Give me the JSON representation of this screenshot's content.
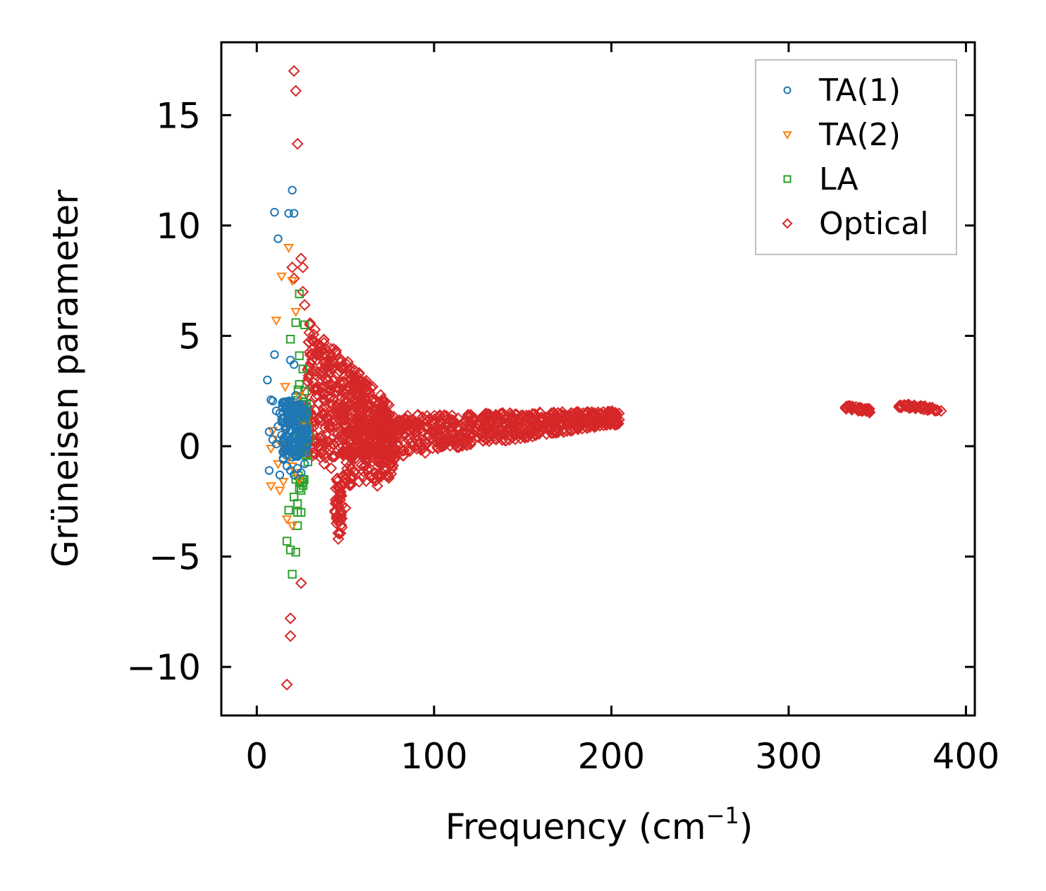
{
  "chart_data": {
    "type": "scatter",
    "title": "",
    "xlabel": "Frequency (cm",
    "xlabel_sup": "−1",
    "xlabel_end": ")",
    "ylabel": "Grüneisen parameter",
    "xlim": [
      -20,
      405
    ],
    "ylim": [
      -12.2,
      18.3
    ],
    "xticks": [
      0,
      100,
      200,
      300,
      400
    ],
    "xtick_labels": [
      "0",
      "100",
      "200",
      "300",
      "400"
    ],
    "yticks": [
      -10,
      -5,
      0,
      5,
      10,
      15
    ],
    "ytick_labels": [
      "−10",
      "−5",
      "0",
      "5",
      "10",
      "15"
    ],
    "legend_position": "top-right",
    "series": [
      {
        "name": "TA(1)",
        "marker": "circle",
        "color": "#1f77b4",
        "points": [
          [
            20,
            11.6
          ],
          [
            10,
            10.6
          ],
          [
            18,
            10.55
          ],
          [
            21,
            10.55
          ],
          [
            12,
            9.4
          ],
          [
            10,
            4.15
          ],
          [
            19,
            3.9
          ],
          [
            21,
            3.7
          ],
          [
            6,
            3.0
          ],
          [
            8,
            2.1
          ],
          [
            9,
            2.05
          ],
          [
            11,
            1.6
          ],
          [
            13,
            1.5
          ],
          [
            15,
            1.3
          ],
          [
            17,
            1.2
          ],
          [
            19,
            1.05
          ],
          [
            21,
            0.95
          ],
          [
            23,
            0.85
          ],
          [
            25,
            0.75
          ],
          [
            27,
            0.7
          ],
          [
            7,
            0.65
          ],
          [
            9,
            0.3
          ],
          [
            11,
            0.1
          ],
          [
            14,
            0.5
          ],
          [
            16,
            0.8
          ],
          [
            18,
            0.4
          ],
          [
            20,
            0.2
          ],
          [
            22,
            -0.1
          ],
          [
            24,
            0.3
          ],
          [
            26,
            0.6
          ],
          [
            28,
            0.4
          ],
          [
            15,
            -0.6
          ],
          [
            17,
            -0.9
          ],
          [
            19,
            -1.1
          ],
          [
            21,
            -1.3
          ],
          [
            23,
            -1.0
          ],
          [
            25,
            -1.2
          ],
          [
            27,
            -0.8
          ],
          [
            7,
            -1.1
          ],
          [
            13,
            -1.3
          ],
          [
            16,
            1.8
          ],
          [
            18,
            2.0
          ],
          [
            20,
            1.7
          ],
          [
            22,
            1.5
          ],
          [
            24,
            1.9
          ],
          [
            26,
            1.4
          ],
          [
            12,
            0.9
          ],
          [
            14,
            1.1
          ],
          [
            22,
            2.3
          ],
          [
            20,
            -0.5
          ]
        ]
      },
      {
        "name": "TA(2)",
        "marker": "triangle-down",
        "color": "#ff7f0e",
        "points": [
          [
            18,
            9.0
          ],
          [
            14,
            7.7
          ],
          [
            20,
            7.5
          ],
          [
            22,
            6.1
          ],
          [
            11,
            5.7
          ],
          [
            16,
            2.7
          ],
          [
            19,
            2.0
          ],
          [
            21,
            1.5
          ],
          [
            23,
            1.2
          ],
          [
            25,
            0.9
          ],
          [
            9,
            0.7
          ],
          [
            12,
            0.3
          ],
          [
            8,
            -0.1
          ],
          [
            14,
            0.1
          ],
          [
            16,
            -0.3
          ],
          [
            18,
            -0.5
          ],
          [
            20,
            -0.9
          ],
          [
            22,
            -1.2
          ],
          [
            24,
            -1.5
          ],
          [
            8,
            -1.8
          ],
          [
            13,
            -2.0
          ],
          [
            17,
            -3.3
          ],
          [
            20,
            -3.6
          ],
          [
            16,
            0.8
          ],
          [
            24,
            2.3
          ],
          [
            26,
            1.1
          ],
          [
            12,
            -0.8
          ],
          [
            15,
            -1.6
          ]
        ]
      },
      {
        "name": "LA",
        "marker": "square",
        "color": "#2ca02c",
        "points": [
          [
            24,
            6.9
          ],
          [
            22,
            5.6
          ],
          [
            27,
            5.5
          ],
          [
            19,
            4.85
          ],
          [
            24,
            4.1
          ],
          [
            26,
            3.5
          ],
          [
            24,
            2.8
          ],
          [
            28,
            1.9
          ],
          [
            26,
            1.3
          ],
          [
            28,
            0.9
          ],
          [
            30,
            0.4
          ],
          [
            22,
            -1.5
          ],
          [
            24,
            -1.9
          ],
          [
            21,
            -2.3
          ],
          [
            23,
            -2.6
          ],
          [
            25,
            -3.0
          ],
          [
            18,
            -2.9
          ],
          [
            23,
            -3.6
          ],
          [
            17,
            -4.3
          ],
          [
            19,
            -4.7
          ],
          [
            22,
            -4.8
          ],
          [
            20,
            -5.8
          ],
          [
            22,
            2.2
          ],
          [
            27,
            2.5
          ],
          [
            23,
            -3.0
          ],
          [
            25,
            -2.0
          ]
        ]
      },
      {
        "name": "Optical",
        "marker": "diamond",
        "color": "#d62728",
        "points": [
          [
            21,
            17.0
          ],
          [
            22,
            16.1
          ],
          [
            23,
            13.7
          ],
          [
            25,
            8.5
          ],
          [
            26,
            8.1
          ],
          [
            20,
            8.1
          ],
          [
            21,
            7.6
          ],
          [
            26,
            7.0
          ],
          [
            27,
            6.4
          ],
          [
            25,
            -6.2
          ],
          [
            19,
            -7.8
          ],
          [
            19,
            -8.6
          ],
          [
            17,
            -10.8
          ],
          [
            30,
            5.5
          ],
          [
            32,
            4.8
          ],
          [
            35,
            4.2
          ],
          [
            38,
            3.5
          ],
          [
            40,
            3.0
          ],
          [
            42,
            2.8
          ],
          [
            45,
            2.5
          ],
          [
            48,
            2.2
          ],
          [
            50,
            2.0
          ],
          [
            55,
            1.8
          ],
          [
            60,
            1.6
          ],
          [
            65,
            1.3
          ],
          [
            70,
            1.0
          ],
          [
            80,
            0.8
          ],
          [
            90,
            0.9
          ],
          [
            100,
            1.1
          ],
          [
            110,
            1.2
          ],
          [
            120,
            1.3
          ],
          [
            130,
            1.4
          ],
          [
            140,
            1.4
          ],
          [
            150,
            1.4
          ],
          [
            160,
            1.5
          ],
          [
            170,
            1.5
          ],
          [
            180,
            1.4
          ],
          [
            190,
            1.4
          ],
          [
            202,
            1.25
          ],
          [
            45,
            -1.5
          ],
          [
            45,
            -2.5
          ],
          [
            45,
            -3.5
          ],
          [
            46,
            -4.2
          ],
          [
            50,
            -2.8
          ],
          [
            55,
            -1.2
          ],
          [
            60,
            -1.4
          ],
          [
            68,
            -1.8
          ],
          [
            75,
            -0.5
          ],
          [
            85,
            -0.2
          ],
          [
            95,
            -0.3
          ],
          [
            105,
            0.2
          ],
          [
            115,
            0.3
          ],
          [
            125,
            0.4
          ],
          [
            135,
            0.3
          ],
          [
            145,
            0.5
          ],
          [
            155,
            0.6
          ],
          [
            165,
            0.7
          ],
          [
            35,
            1.2
          ],
          [
            38,
            -0.8
          ],
          [
            42,
            -1.0
          ],
          [
            333,
            1.75
          ],
          [
            336,
            1.7
          ],
          [
            339,
            1.65
          ],
          [
            342,
            1.62
          ],
          [
            345,
            1.58
          ],
          [
            363,
            1.85
          ],
          [
            367,
            1.82
          ],
          [
            371,
            1.78
          ],
          [
            375,
            1.74
          ],
          [
            379,
            1.7
          ],
          [
            386,
            1.6
          ]
        ]
      }
    ],
    "clusters": [
      {
        "series": "Optical",
        "x": [
          28,
          75
        ],
        "y_top": [
          5.8,
          1.9
        ],
        "y_bot": [
          -0.6,
          -0.3
        ],
        "n": 520
      },
      {
        "series": "Optical",
        "x": [
          48,
          78
        ],
        "y_top": [
          1.2,
          0.9
        ],
        "y_bot": [
          -1.9,
          -1.4
        ],
        "n": 160
      },
      {
        "series": "Optical",
        "x": [
          44,
          48
        ],
        "y_top": [
          -1.0,
          -1.6
        ],
        "y_bot": [
          -3.8,
          -4.1
        ],
        "n": 40
      },
      {
        "series": "Optical",
        "x": [
          68,
          205
        ],
        "y_top": [
          1.4,
          1.6
        ],
        "y_bot": [
          -0.6,
          1.0
        ],
        "n": 620
      },
      {
        "series": "Optical",
        "x": [
          332,
          346
        ],
        "y_top": [
          1.85,
          1.7
        ],
        "y_bot": [
          1.65,
          1.52
        ],
        "n": 40
      },
      {
        "series": "Optical",
        "x": [
          362,
          384
        ],
        "y_top": [
          1.95,
          1.75
        ],
        "y_bot": [
          1.75,
          1.6
        ],
        "n": 50
      },
      {
        "series": "TA(1)",
        "x": [
          14,
          29
        ],
        "y_top": [
          2.2,
          1.8
        ],
        "y_bot": [
          -0.6,
          -0.4
        ],
        "n": 130
      },
      {
        "series": "LA",
        "x": [
          22,
          29
        ],
        "y_top": [
          2.8,
          1.6
        ],
        "y_bot": [
          -2.2,
          -1.5
        ],
        "n": 40
      }
    ]
  }
}
